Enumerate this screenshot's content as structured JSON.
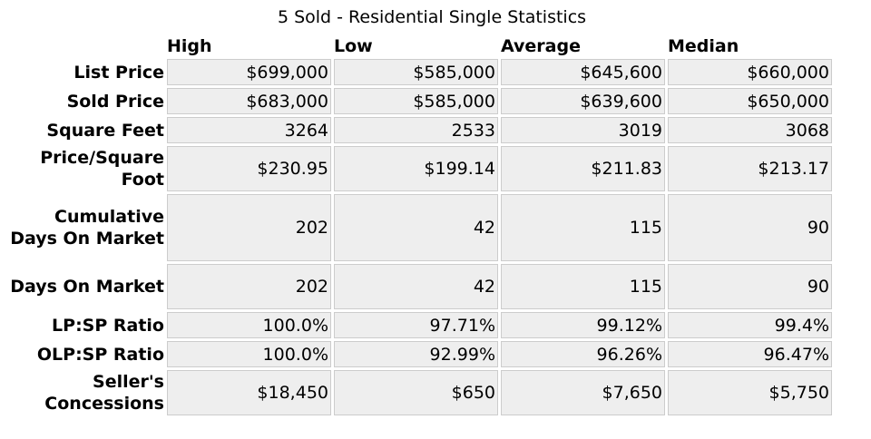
{
  "title": "5 Sold - Residential Single Statistics",
  "columns": [
    "High",
    "Low",
    "Average",
    "Median"
  ],
  "rows": [
    {
      "label": "List Price",
      "values": [
        "$699,000",
        "$585,000",
        "$645,600",
        "$660,000"
      ]
    },
    {
      "label": "Sold Price",
      "values": [
        "$683,000",
        "$585,000",
        "$639,600",
        "$650,000"
      ]
    },
    {
      "label": "Square Feet",
      "values": [
        "3264",
        "2533",
        "3019",
        "3068"
      ]
    },
    {
      "label": "Price/Square Foot",
      "values": [
        "$230.95",
        "$199.14",
        "$211.83",
        "$213.17"
      ]
    },
    {
      "label": "Cumulative Days On Market",
      "values": [
        "202",
        "42",
        "115",
        "90"
      ]
    },
    {
      "label": "Days On Market",
      "values": [
        "202",
        "42",
        "115",
        "90"
      ]
    },
    {
      "label": "LP:SP Ratio",
      "values": [
        "100.0%",
        "97.71%",
        "99.12%",
        "99.4%"
      ]
    },
    {
      "label": "OLP:SP Ratio",
      "values": [
        "100.0%",
        "92.99%",
        "96.26%",
        "96.47%"
      ]
    },
    {
      "label": "Seller's Concessions",
      "values": [
        "$18,450",
        "$650",
        "$7,650",
        "$5,750"
      ]
    }
  ]
}
